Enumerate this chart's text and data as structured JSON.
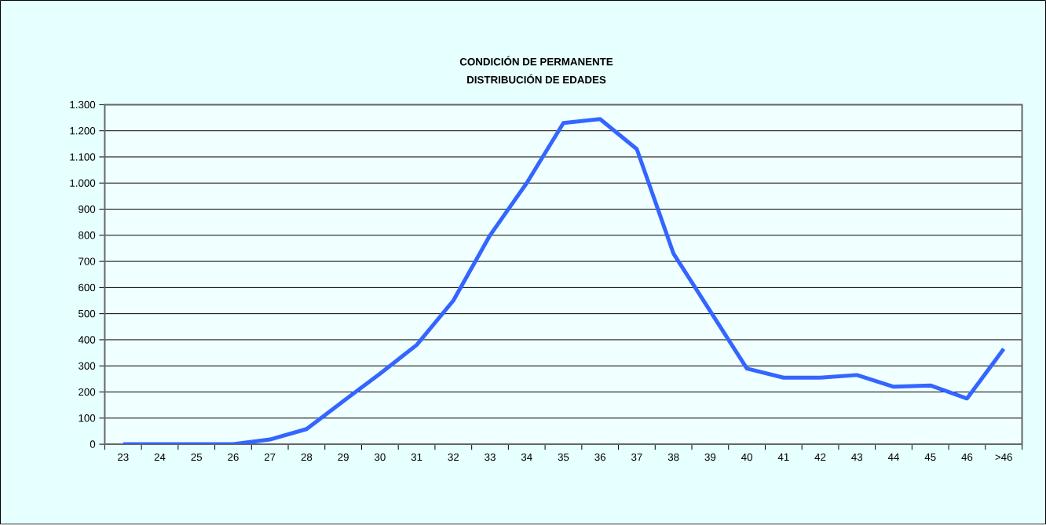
{
  "chart_data": {
    "type": "line",
    "title": "CONDICIÓN DE PERMANENTE",
    "subtitle": "DISTRIBUCIÓN DE EDADES",
    "categories": [
      "23",
      "24",
      "25",
      "26",
      "27",
      "28",
      "29",
      "30",
      "31",
      "32",
      "33",
      "34",
      "35",
      "36",
      "37",
      "38",
      "39",
      "40",
      "41",
      "42",
      "43",
      "44",
      "45",
      "46",
      ">46"
    ],
    "series": [
      {
        "color": "#3366ff",
        "values": [
          0,
          0,
          0,
          0,
          18,
          58,
          165,
          270,
          380,
          550,
          800,
          1000,
          1230,
          1245,
          1130,
          730,
          510,
          290,
          255,
          255,
          265,
          220,
          225,
          175,
          365
        ]
      }
    ],
    "ylim": [
      0,
      1300
    ],
    "yticks": [
      0,
      100,
      200,
      300,
      400,
      500,
      600,
      700,
      800,
      900,
      {
        "value": 1000,
        "label": "1.000"
      },
      {
        "value": 1100,
        "label": "1.100"
      },
      {
        "value": 1200,
        "label": "1.200"
      },
      {
        "value": 1300,
        "label": "1.300"
      }
    ],
    "grid": "y",
    "marker": "none",
    "line_style": "solid"
  }
}
